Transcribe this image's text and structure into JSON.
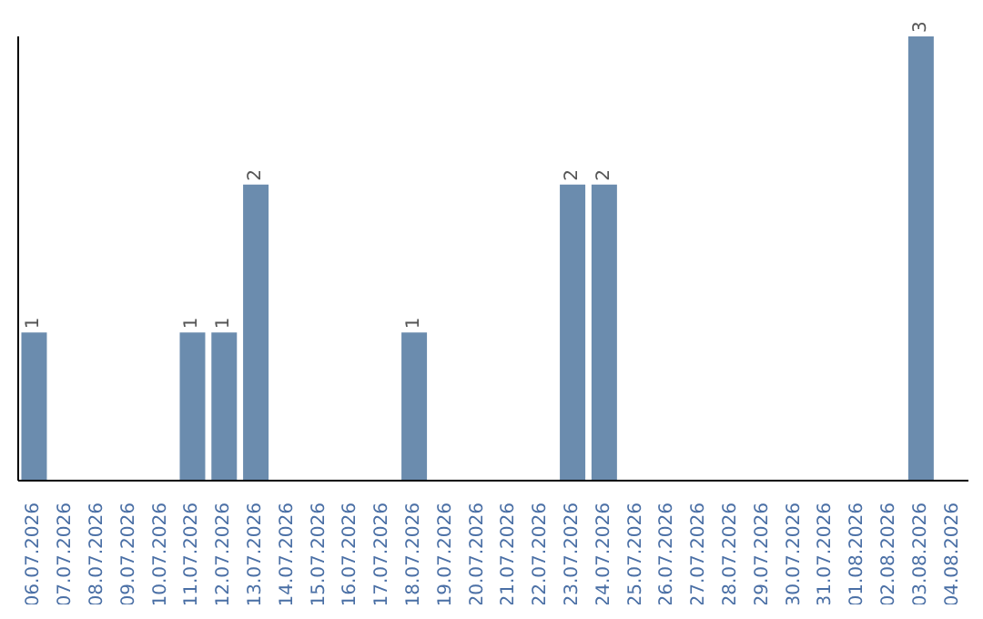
{
  "chart_data": {
    "type": "bar",
    "categories": [
      "06.07.2026",
      "07.07.2026",
      "08.07.2026",
      "09.07.2026",
      "10.07.2026",
      "11.07.2026",
      "12.07.2026",
      "13.07.2026",
      "14.07.2026",
      "15.07.2026",
      "16.07.2026",
      "17.07.2026",
      "18.07.2026",
      "19.07.2026",
      "20.07.2026",
      "21.07.2026",
      "22.07.2026",
      "23.07.2026",
      "24.07.2026",
      "25.07.2026",
      "26.07.2026",
      "27.07.2026",
      "28.07.2026",
      "29.07.2026",
      "30.07.2026",
      "31.07.2026",
      "01.08.2026",
      "02.08.2026",
      "03.08.2026",
      "04.08.2026"
    ],
    "values": [
      1,
      0,
      0,
      0,
      0,
      1,
      1,
      2,
      0,
      0,
      0,
      0,
      1,
      0,
      0,
      0,
      0,
      2,
      2,
      0,
      0,
      0,
      0,
      0,
      0,
      0,
      0,
      0,
      3,
      0
    ],
    "value_labels": [
      "1",
      null,
      null,
      null,
      null,
      "1",
      "1",
      "2",
      null,
      null,
      null,
      null,
      "1",
      null,
      null,
      null,
      null,
      "2",
      "2",
      null,
      null,
      null,
      null,
      null,
      null,
      null,
      null,
      null,
      "3",
      null
    ],
    "color": "#6b8cae",
    "grid": false,
    "legend": false,
    "tick_labels": "x"
  }
}
